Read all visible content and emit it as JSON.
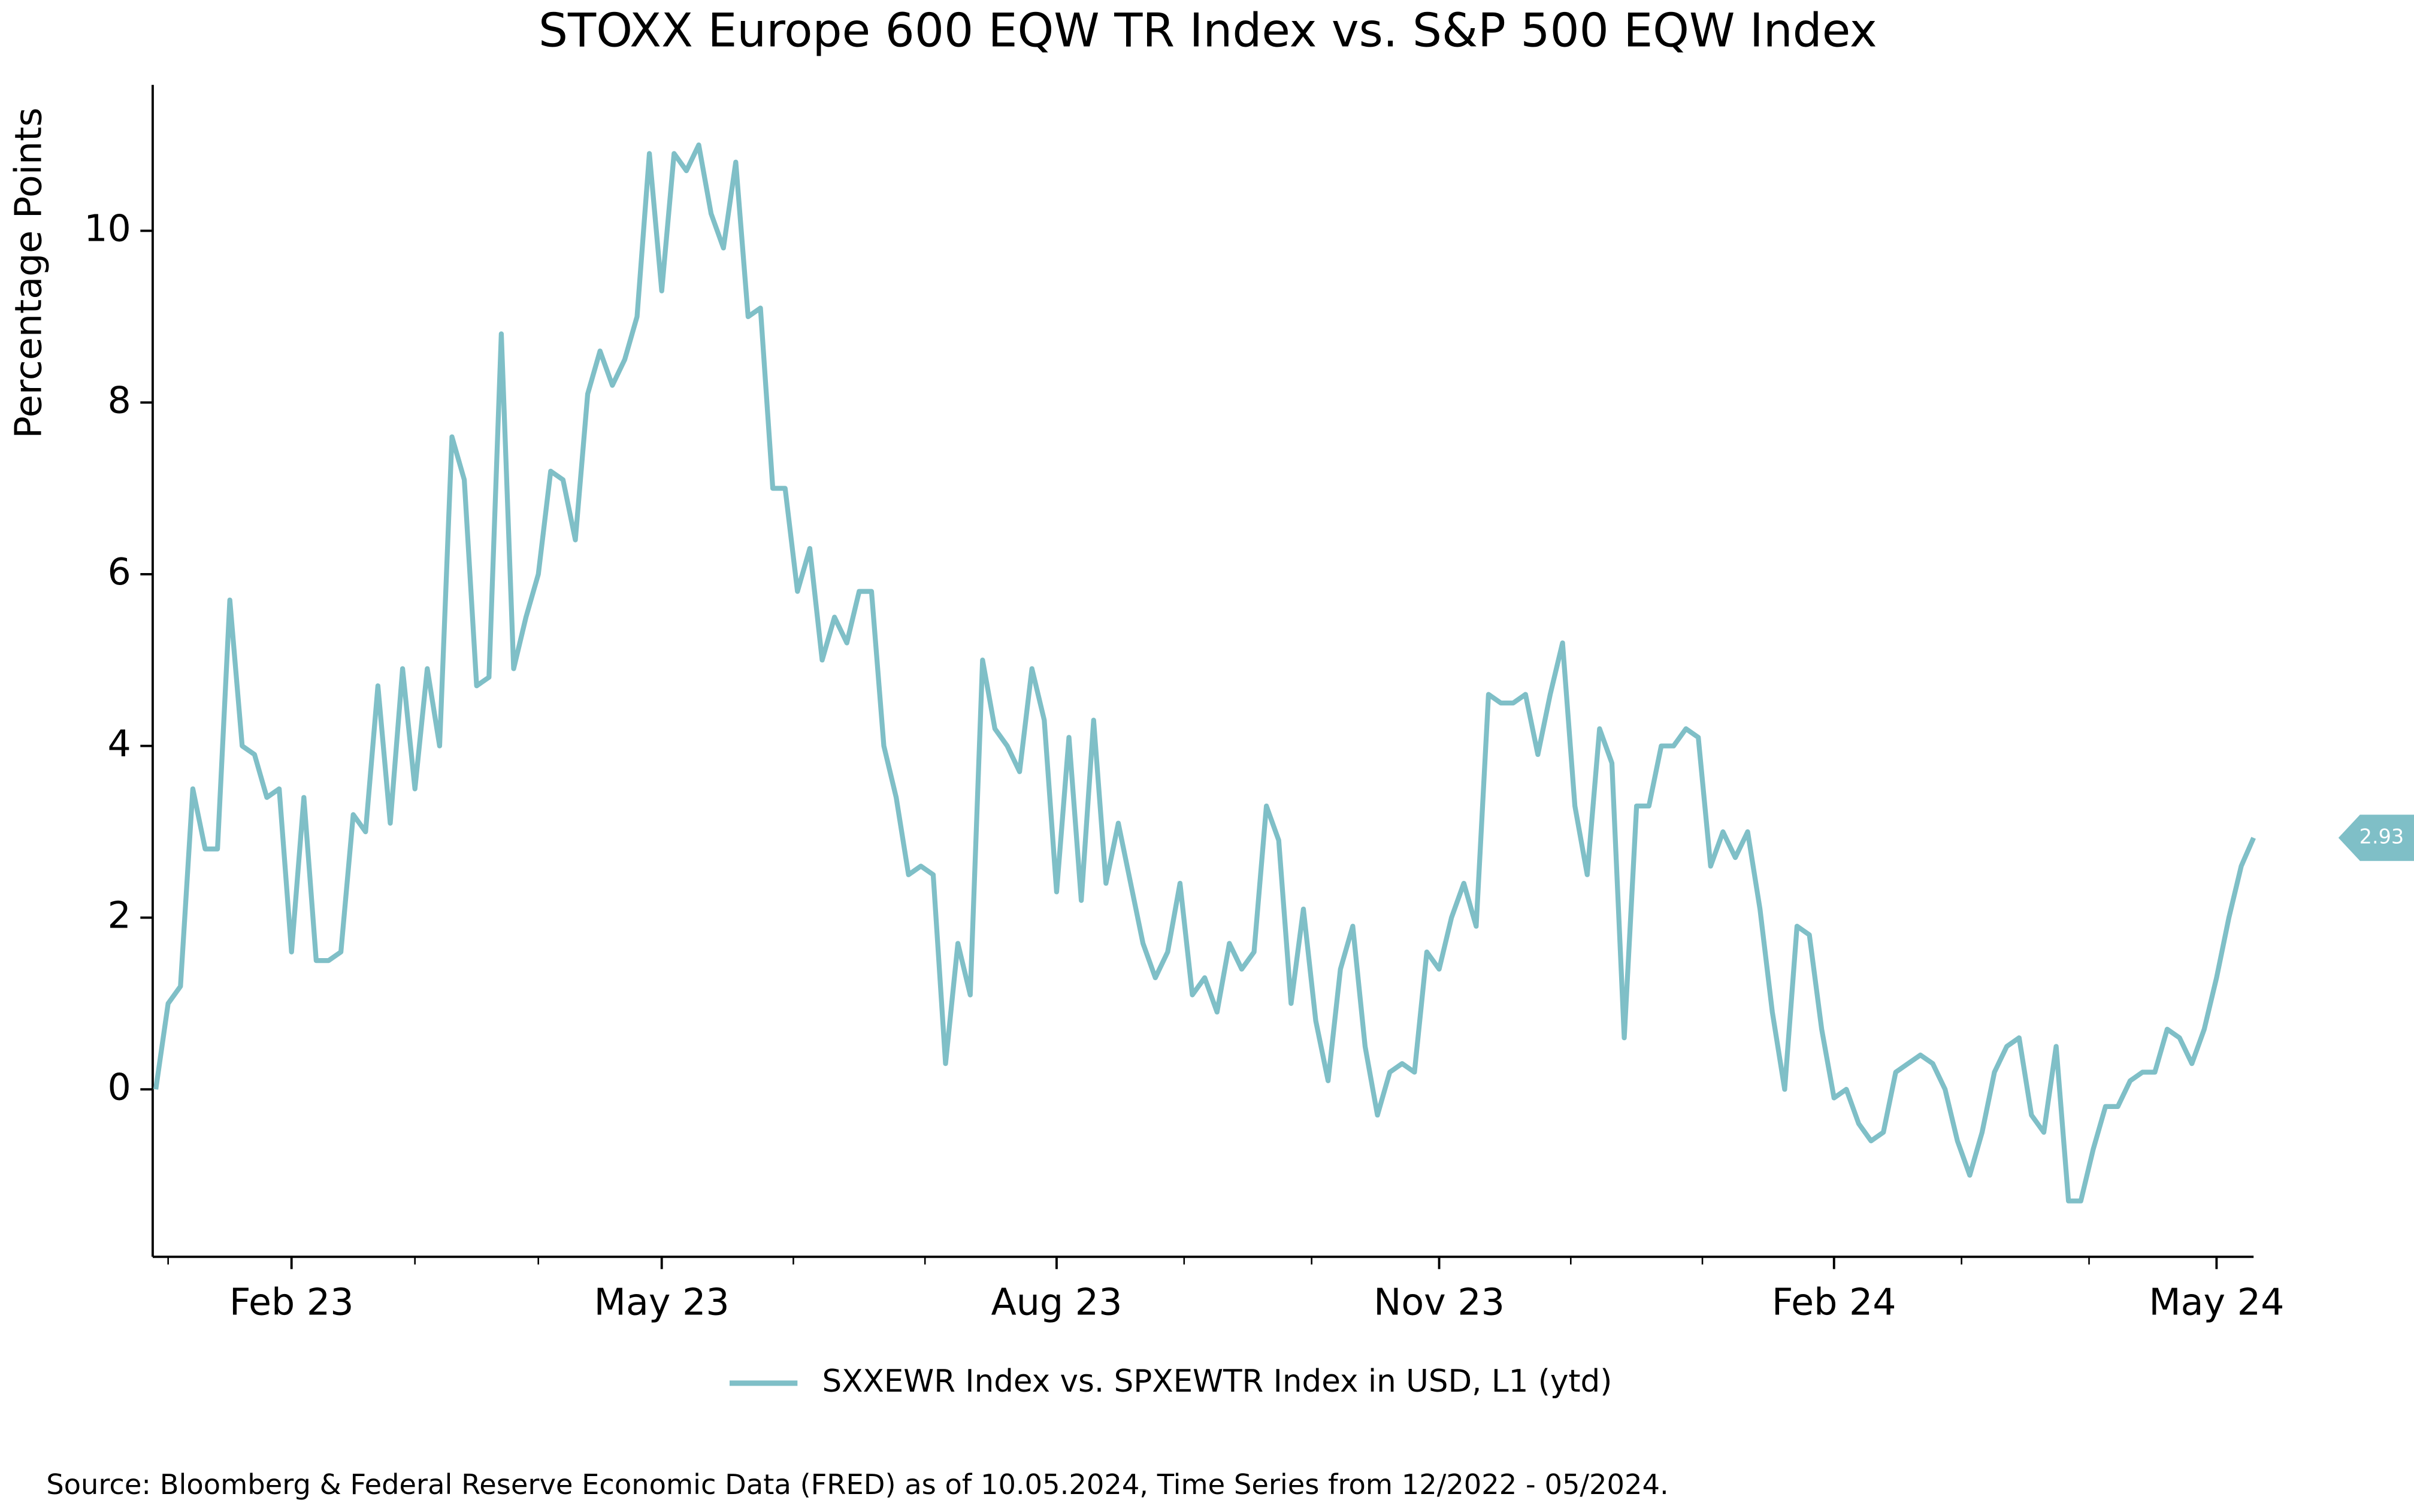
{
  "chart_data": {
    "type": "line",
    "title": "STOXX Europe 600 EQW TR Index vs. S&P 500 EQW Index",
    "y_label": "Percentage Points",
    "source": "Source: Bloomberg & Federal Reserve Economic Data (FRED) as of 10.05.2024, Time Series from 12/2022 - 05/2024.",
    "categories": [
      null,
      null,
      null,
      null,
      null,
      null,
      null,
      null,
      null,
      null,
      null,
      "Feb 23",
      null,
      null,
      null,
      null,
      null,
      null,
      null,
      null,
      null,
      null,
      null,
      null,
      null,
      null,
      null,
      null,
      null,
      null,
      null,
      null,
      null,
      null,
      null,
      null,
      null,
      null,
      null,
      null,
      null,
      "May 23",
      null,
      null,
      null,
      null,
      null,
      null,
      null,
      null,
      null,
      null,
      null,
      null,
      null,
      null,
      null,
      null,
      null,
      null,
      null,
      null,
      null,
      null,
      null,
      null,
      null,
      null,
      null,
      null,
      null,
      null,
      null,
      "Aug 23",
      null,
      null,
      null,
      null,
      null,
      null,
      null,
      null,
      null,
      null,
      null,
      null,
      null,
      null,
      null,
      null,
      null,
      null,
      null,
      null,
      null,
      null,
      null,
      null,
      null,
      null,
      null,
      null,
      null,
      null,
      "Nov 23",
      null,
      null,
      null,
      null,
      null,
      null,
      null,
      null,
      null,
      null,
      null,
      null,
      null,
      null,
      null,
      null,
      null,
      null,
      null,
      null,
      null,
      null,
      null,
      null,
      null,
      null,
      null,
      null,
      null,
      null,
      null,
      "Feb 24",
      null,
      null,
      null,
      null,
      null,
      null,
      null,
      null,
      null,
      null,
      null,
      null,
      null,
      null,
      null,
      null,
      null,
      null,
      null,
      null,
      null,
      null,
      null,
      null,
      null,
      null,
      null,
      null,
      null,
      null,
      "May 24",
      null,
      null,
      null
    ],
    "series": [
      {
        "name": "SXXEWR Index vs. SPXEWTR Index in USD, L1 (ytd)",
        "color": "#7fbfc7",
        "values": [
          0,
          1.0,
          1.2,
          3.5,
          2.8,
          2.8,
          5.7,
          4.0,
          3.9,
          3.4,
          3.5,
          1.6,
          3.4,
          1.5,
          1.5,
          1.6,
          3.2,
          3.0,
          4.7,
          3.1,
          4.9,
          3.5,
          4.9,
          4.0,
          7.6,
          7.1,
          4.7,
          4.8,
          8.8,
          4.9,
          5.5,
          6.0,
          7.2,
          7.1,
          6.4,
          8.1,
          8.6,
          8.2,
          8.5,
          9.0,
          10.9,
          9.3,
          10.9,
          10.7,
          11.0,
          10.2,
          9.8,
          10.8,
          9.0,
          9.1,
          7.0,
          7.0,
          5.8,
          6.3,
          5.0,
          5.5,
          5.2,
          5.8,
          5.8,
          4.0,
          3.4,
          2.5,
          2.6,
          2.5,
          0.3,
          1.7,
          1.1,
          5.0,
          4.2,
          4.0,
          3.7,
          4.9,
          4.3,
          2.3,
          4.1,
          2.2,
          4.3,
          2.4,
          3.1,
          2.4,
          1.7,
          1.3,
          1.6,
          2.4,
          1.1,
          1.3,
          0.9,
          1.7,
          1.4,
          1.6,
          3.3,
          2.9,
          1.0,
          2.1,
          0.8,
          0.1,
          1.4,
          1.9,
          0.5,
          -0.3,
          0.2,
          0.3,
          0.2,
          1.6,
          1.4,
          2.0,
          2.4,
          1.9,
          4.6,
          4.5,
          4.5,
          4.6,
          3.9,
          4.6,
          5.2,
          3.3,
          2.5,
          4.2,
          3.8,
          0.6,
          3.3,
          3.3,
          4.0,
          4.0,
          4.2,
          4.1,
          2.6,
          3.0,
          2.7,
          3.0,
          2.1,
          0.9,
          0.0,
          1.9,
          1.8,
          0.7,
          -0.1,
          0.0,
          -0.4,
          -0.6,
          -0.5,
          0.2,
          0.3,
          0.4,
          0.3,
          0.0,
          -0.6,
          -1.0,
          -0.5,
          0.2,
          0.5,
          0.6,
          -0.3,
          -0.5,
          0.5,
          -1.3,
          -1.3,
          -0.7,
          -0.2,
          -0.2,
          0.1,
          0.2,
          0.2,
          0.7,
          0.6,
          0.3,
          0.7,
          1.3,
          2.0,
          2.6,
          2.93
        ]
      }
    ],
    "ylim": [
      -1.95,
      11.7
    ],
    "yticks": [
      0,
      2,
      4,
      6,
      8,
      10
    ],
    "grid": false
  }
}
